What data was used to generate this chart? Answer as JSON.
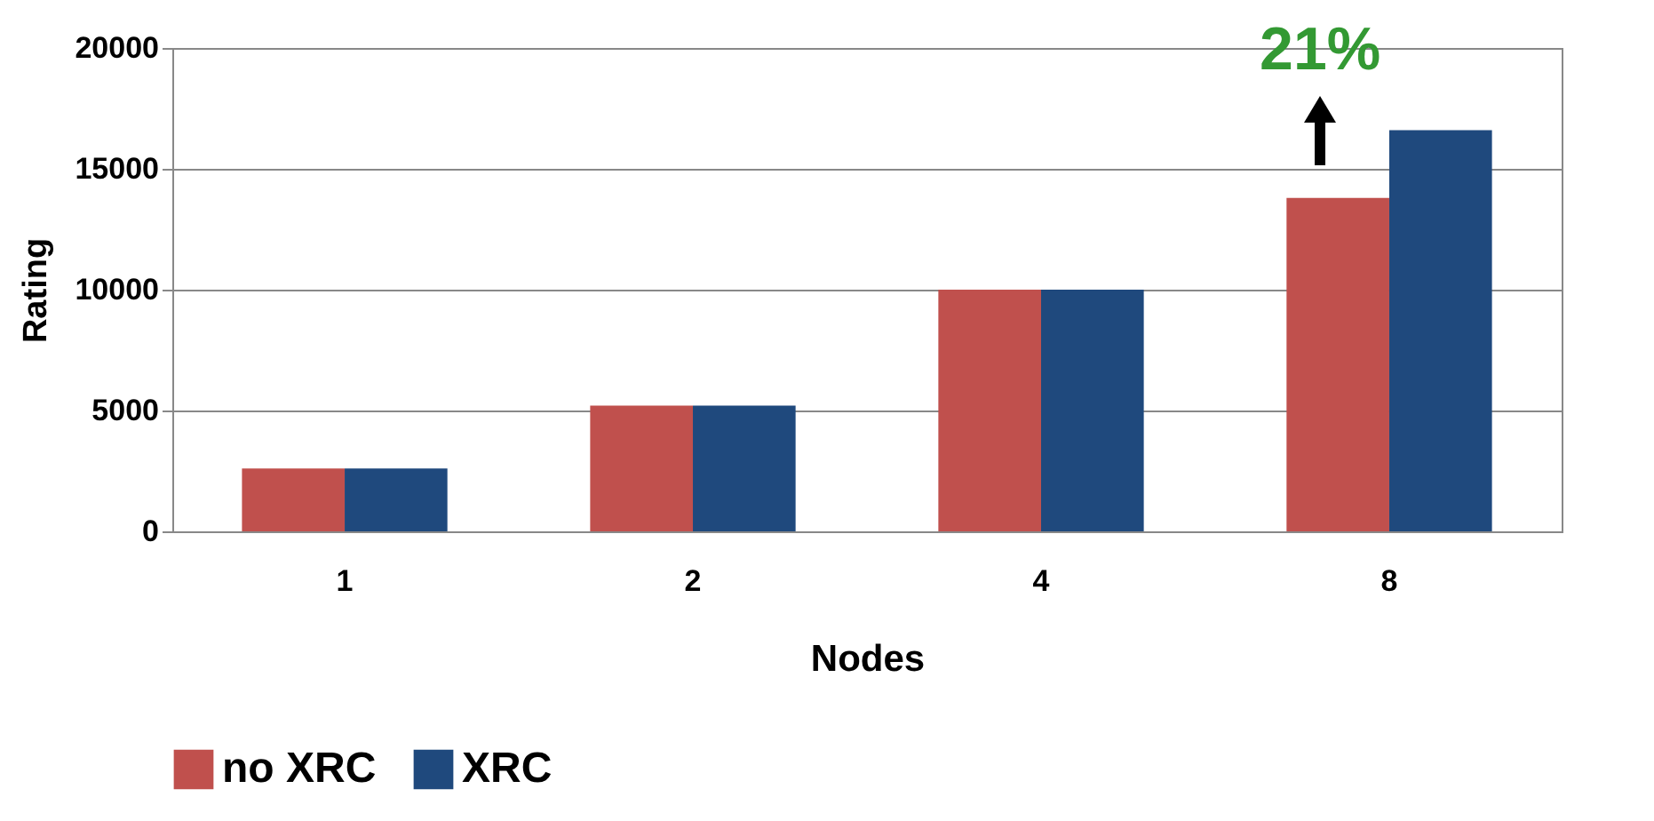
{
  "chart_data": {
    "type": "bar",
    "xlabel": "Nodes",
    "ylabel": "Rating",
    "categories": [
      "1",
      "2",
      "4",
      "8"
    ],
    "series": [
      {
        "name": "no XRC",
        "color": "#c0504d",
        "values": [
          2600,
          5200,
          10000,
          13800
        ]
      },
      {
        "name": "XRC",
        "color": "#1f497d",
        "values": [
          2600,
          5200,
          10000,
          16600
        ]
      }
    ],
    "ylim": [
      0,
      20000
    ],
    "yticks": [
      0,
      5000,
      10000,
      15000,
      20000
    ],
    "grid": "y",
    "legend": "bottom",
    "annotations": [
      "21%"
    ]
  }
}
